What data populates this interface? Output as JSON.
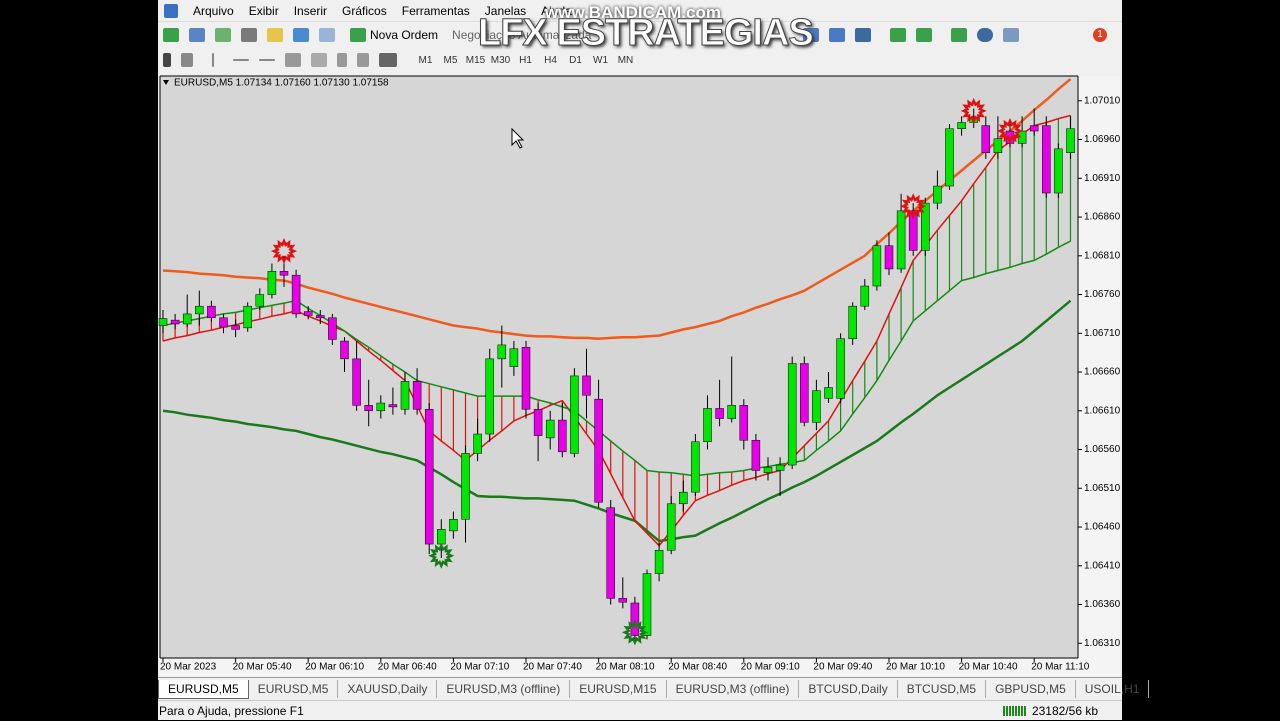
{
  "menu": [
    "Arquivo",
    "Exibir",
    "Inserir",
    "Gráficos",
    "Ferramentas",
    "Janelas",
    "Ajuda"
  ],
  "toolbar": {
    "new_order": "Nova Ordem",
    "auto_trading": "Negociação Automatizada",
    "notifications": 1
  },
  "timeframes": [
    "M1",
    "M5",
    "M15",
    "M30",
    "H1",
    "H4",
    "D1",
    "W1",
    "MN"
  ],
  "watermark": {
    "recorder": "www.BANDICAM.com",
    "brand": "LFX ESTRATEGIAS"
  },
  "chart_data": {
    "type": "candlestick",
    "title": "EURUSD,M5  1.07134 1.07160 1.07130 1.07158",
    "categories": [
      "20 Mar 2023",
      null,
      null,
      null,
      null,
      null,
      "20 Mar 05:40",
      null,
      null,
      null,
      null,
      null,
      "20 Mar 06:10",
      null,
      null,
      null,
      null,
      null,
      "20 Mar 06:40",
      null,
      null,
      null,
      null,
      null,
      "20 Mar 07:10",
      null,
      null,
      null,
      null,
      null,
      "20 Mar 07:40",
      null,
      null,
      null,
      null,
      null,
      "20 Mar 08:10",
      null,
      null,
      null,
      null,
      null,
      "20 Mar 08:40",
      null,
      null,
      null,
      null,
      null,
      "20 Mar 09:10",
      null,
      null,
      null,
      null,
      null,
      "20 Mar 09:40",
      null,
      null,
      null,
      null,
      null,
      "20 Mar 10:10",
      null,
      null,
      null,
      null,
      null,
      "20 Mar 10:40",
      null,
      null,
      null,
      null,
      null,
      "20 Mar 11:10",
      null,
      null,
      null
    ],
    "open": [
      1.0672,
      1.06727,
      1.06722,
      1.06735,
      1.06745,
      1.0673,
      1.0672,
      1.06717,
      1.06745,
      1.0676,
      1.0679,
      1.06785,
      1.06738,
      1.06733,
      1.0673,
      1.067,
      1.06677,
      1.06617,
      1.0661,
      1.06618,
      1.06612,
      1.06648,
      1.06612,
      1.06438,
      1.06455,
      1.0647,
      1.06555,
      1.0658,
      1.06677,
      1.06667,
      1.06692,
      1.06612,
      1.06575,
      1.06598,
      1.06555,
      1.06655,
      1.06625,
      1.06485,
      1.06368,
      1.06362,
      1.0632,
      1.064,
      1.0643,
      1.0649,
      1.06505,
      1.0657,
      1.06613,
      1.066,
      1.06617,
      1.06572,
      1.0653,
      1.06533,
      1.0654,
      1.06671,
      1.06595,
      1.06626,
      1.06626,
      1.06703,
      1.06745,
      1.06771,
      1.06823,
      1.06793,
      1.06868,
      1.06817,
      1.06878,
      1.069,
      1.06974,
      1.06982,
      1.06978,
      1.06943,
      1.06971,
      1.06955,
      1.06978,
      1.06978,
      1.06891,
      1.06943
    ],
    "high": [
      1.0674,
      1.06735,
      1.0676,
      1.06765,
      1.06752,
      1.06735,
      1.06728,
      1.0675,
      1.06768,
      1.068,
      1.0681,
      1.06792,
      1.06745,
      1.0674,
      1.06735,
      1.06705,
      1.067,
      1.0665,
      1.0663,
      1.0664,
      1.0666,
      1.06665,
      1.0662,
      1.0647,
      1.0648,
      1.06565,
      1.066,
      1.0669,
      1.0672,
      1.067,
      1.067,
      1.0662,
      1.0661,
      1.0662,
      1.06665,
      1.0669,
      1.0665,
      1.06495,
      1.06395,
      1.0637,
      1.06405,
      1.0644,
      1.065,
      1.0652,
      1.0658,
      1.0663,
      1.0665,
      1.0668,
      1.06625,
      1.0658,
      1.0655,
      1.0655,
      1.0668,
      1.0668,
      1.0665,
      1.0666,
      1.0671,
      1.0675,
      1.0678,
      1.0683,
      1.0684,
      1.0689,
      1.06878,
      1.06885,
      1.0692,
      1.0698,
      1.0699,
      1.07,
      1.0699,
      1.0699,
      1.06985,
      1.0699,
      1.07,
      1.0699,
      1.06955,
      1.0699
    ],
    "low": [
      1.0671,
      1.06715,
      1.06718,
      1.0672,
      1.06725,
      1.0671,
      1.06705,
      1.06712,
      1.0674,
      1.06755,
      1.0677,
      1.0673,
      1.06728,
      1.06722,
      1.06695,
      1.0666,
      1.0661,
      1.0659,
      1.066,
      1.06605,
      1.06605,
      1.06605,
      1.06425,
      1.0642,
      1.06445,
      1.0644,
      1.06545,
      1.0657,
      1.0664,
      1.06655,
      1.066,
      1.06545,
      1.0656,
      1.0655,
      1.0655,
      1.066,
      1.06485,
      1.0636,
      1.06355,
      1.0631,
      1.06315,
      1.0639,
      1.06425,
      1.0648,
      1.065,
      1.0656,
      1.0659,
      1.06595,
      1.0656,
      1.0652,
      1.0652,
      1.065,
      1.06535,
      1.0659,
      1.06585,
      1.0662,
      1.0662,
      1.06695,
      1.0674,
      1.06765,
      1.06785,
      1.06788,
      1.0681,
      1.0681,
      1.0687,
      1.06895,
      1.06965,
      1.06975,
      1.06935,
      1.06935,
      1.0695,
      1.0695,
      1.06965,
      1.06885,
      1.06885,
      1.06935
    ],
    "close": [
      1.06729,
      1.06722,
      1.06735,
      1.06745,
      1.0673,
      1.06718,
      1.06715,
      1.06745,
      1.0676,
      1.0679,
      1.06785,
      1.06735,
      1.06733,
      1.0673,
      1.06702,
      1.06677,
      1.06617,
      1.0661,
      1.0662,
      1.06615,
      1.06648,
      1.06612,
      1.06438,
      1.06457,
      1.0647,
      1.06555,
      1.0658,
      1.06677,
      1.06695,
      1.0669,
      1.06612,
      1.06578,
      1.06598,
      1.06557,
      1.06655,
      1.0663,
      1.06492,
      1.06368,
      1.06363,
      1.0632,
      1.064,
      1.0643,
      1.0649,
      1.06505,
      1.0657,
      1.06613,
      1.066,
      1.06617,
      1.06572,
      1.06533,
      1.06537,
      1.0654,
      1.06671,
      1.06595,
      1.06636,
      1.0664,
      1.06703,
      1.06745,
      1.06771,
      1.06823,
      1.06793,
      1.06868,
      1.06817,
      1.06878,
      1.069,
      1.06974,
      1.06982,
      1.06987,
      1.06943,
      1.06961,
      1.06955,
      1.06971,
      1.06971,
      1.06891,
      1.06948,
      1.06974
    ],
    "up_color": "#00e600",
    "down_color": "#e600e6",
    "series": [
      {
        "color": "#f05a1a",
        "values": [
          1.06791,
          1.0679,
          1.06789,
          1.06787,
          1.06786,
          1.06785,
          1.06783,
          1.06782,
          1.06781,
          1.06779,
          1.06778,
          1.06774,
          1.06769,
          1.06765,
          1.06761,
          1.06756,
          1.06752,
          1.06748,
          1.06744,
          1.0674,
          1.06736,
          1.06732,
          1.06728,
          1.06724,
          1.0672,
          1.06718,
          1.06716,
          1.06713,
          1.06711,
          1.06709,
          1.06707,
          1.06706,
          1.06706,
          1.06705,
          1.06704,
          1.06704,
          1.06703,
          1.06704,
          1.06705,
          1.06705,
          1.06706,
          1.06707,
          1.06711,
          1.06715,
          1.06718,
          1.06722,
          1.06726,
          1.06732,
          1.06737,
          1.06743,
          1.06748,
          1.06754,
          1.06759,
          1.06765,
          1.06774,
          1.06783,
          1.06792,
          1.06801,
          1.0681,
          1.06825,
          1.06839,
          1.06854,
          1.06868,
          1.06881,
          1.06894,
          1.06907,
          1.0692,
          1.06933,
          1.06946,
          1.06958,
          1.06971,
          1.06984,
          1.06998,
          1.07011,
          1.07025,
          1.07038
        ]
      },
      {
        "color": "#1a7a1a",
        "values": [
          1.0661,
          1.06608,
          1.06605,
          1.06603,
          1.06601,
          1.06598,
          1.06596,
          1.06593,
          1.06591,
          1.06589,
          1.06586,
          1.06584,
          1.0658,
          1.06576,
          1.06573,
          1.06569,
          1.06565,
          1.06561,
          1.06557,
          1.06554,
          1.0655,
          1.06546,
          1.06537,
          1.06528,
          1.06518,
          1.06509,
          1.065,
          1.06499,
          1.06499,
          1.06498,
          1.06497,
          1.06497,
          1.06496,
          1.06495,
          1.06494,
          1.06489,
          1.06484,
          1.06478,
          1.06473,
          1.06468,
          1.06455,
          1.06442,
          1.06444,
          1.06447,
          1.06449,
          1.06457,
          1.06465,
          1.06472,
          1.0648,
          1.06488,
          1.06496,
          1.06503,
          1.06511,
          1.06518,
          1.06526,
          1.06535,
          1.06544,
          1.06553,
          1.06562,
          1.06571,
          1.06583,
          1.06595,
          1.06606,
          1.06618,
          1.0663,
          1.0664,
          1.0665,
          1.0666,
          1.0667,
          1.0668,
          1.0669,
          1.067,
          1.06713,
          1.06726,
          1.06739,
          1.06752
        ]
      },
      {
        "color": "#e01010",
        "values": [
          1.067,
          1.06704,
          1.06707,
          1.06711,
          1.06714,
          1.06718,
          1.06721,
          1.06725,
          1.06728,
          1.06732,
          1.06735,
          1.06739,
          1.06732,
          1.06726,
          1.06719,
          1.06713,
          1.067,
          1.06687,
          1.06675,
          1.06662,
          1.06649,
          1.06617,
          1.06584,
          1.06571,
          1.06559,
          1.06546,
          1.06559,
          1.06572,
          1.06584,
          1.06597,
          1.06604,
          1.0661,
          1.06617,
          1.06623,
          1.06602,
          1.0658,
          1.06559,
          1.06529,
          1.06498,
          1.06468,
          1.06452,
          1.06436,
          1.06455,
          1.06475,
          1.06494,
          1.06501,
          1.06507,
          1.06514,
          1.0652,
          1.06524,
          1.06529,
          1.06533,
          1.06549,
          1.06565,
          1.06581,
          1.06597,
          1.06623,
          1.06649,
          1.06674,
          1.067,
          1.06735,
          1.06769,
          1.06804,
          1.06823,
          1.06843,
          1.06862,
          1.06881,
          1.06903,
          1.06924,
          1.06946,
          1.06957,
          1.06967,
          1.06978,
          1.06982,
          1.06987,
          1.06991
        ]
      },
      {
        "color": "#128c12",
        "values": [
          1.0672,
          1.06723,
          1.06726,
          1.06729,
          1.06732,
          1.06735,
          1.06737,
          1.0674,
          1.06743,
          1.06746,
          1.06749,
          1.06752,
          1.06742,
          1.06733,
          1.06723,
          1.06713,
          1.06702,
          1.06692,
          1.06681,
          1.0667,
          1.0666,
          1.06649,
          1.06645,
          1.06641,
          1.06637,
          1.06633,
          1.06629,
          1.06629,
          1.06629,
          1.06629,
          1.06629,
          1.06624,
          1.0662,
          1.06615,
          1.0661,
          1.06597,
          1.06584,
          1.06571,
          1.06558,
          1.06546,
          1.06533,
          1.06531,
          1.0653,
          1.06528,
          1.06526,
          1.06528,
          1.0653,
          1.06531,
          1.06533,
          1.06536,
          1.06538,
          1.06541,
          1.06543,
          1.06546,
          1.06559,
          1.06571,
          1.06584,
          1.06606,
          1.06627,
          1.06649,
          1.06675,
          1.067,
          1.06726,
          1.06739,
          1.06752,
          1.06765,
          1.06778,
          1.06782,
          1.06787,
          1.06791,
          1.06795,
          1.068,
          1.06804,
          1.06812,
          1.06821,
          1.06829
        ]
      }
    ],
    "sell_signals": {
      "color": "#e01010",
      "values": [
        null,
        null,
        null,
        null,
        null,
        null,
        null,
        null,
        null,
        null,
        1.06816,
        null,
        null,
        null,
        null,
        null,
        null,
        null,
        null,
        null,
        null,
        null,
        null,
        null,
        null,
        null,
        null,
        null,
        null,
        null,
        null,
        null,
        null,
        null,
        null,
        null,
        null,
        null,
        null,
        null,
        null,
        null,
        null,
        null,
        null,
        null,
        null,
        null,
        null,
        null,
        null,
        null,
        null,
        null,
        null,
        null,
        null,
        null,
        null,
        null,
        null,
        null,
        1.06874,
        null,
        null,
        null,
        null,
        1.06997,
        null,
        null,
        1.06971,
        null,
        null,
        null,
        null,
        null
      ]
    },
    "buy_signals": {
      "color": "#1a7a1a",
      "values": [
        null,
        null,
        null,
        null,
        null,
        null,
        null,
        null,
        null,
        null,
        null,
        null,
        null,
        null,
        null,
        null,
        null,
        null,
        null,
        null,
        null,
        null,
        null,
        1.06423,
        null,
        null,
        null,
        null,
        null,
        null,
        null,
        null,
        null,
        null,
        null,
        null,
        null,
        null,
        null,
        1.06324,
        null,
        null,
        null,
        null,
        null,
        null,
        null,
        null,
        null,
        null,
        null,
        null,
        null,
        null,
        null,
        null,
        null,
        null,
        null,
        null,
        null,
        null,
        null,
        null,
        null,
        null,
        null,
        null,
        null,
        null,
        null,
        null,
        null,
        null,
        null,
        null
      ]
    },
    "ylim": [
      1.06291,
      1.07042
    ],
    "yticks": [
      {
        "value": 1.0701,
        "label": "1.07010"
      },
      {
        "value": 1.0696,
        "label": "1.06960"
      },
      {
        "value": 1.0691,
        "label": "1.06910"
      },
      {
        "value": 1.0686,
        "label": "1.06860"
      },
      {
        "value": 1.0681,
        "label": "1.06810"
      },
      {
        "value": 1.0676,
        "label": "1.06760"
      },
      {
        "value": 1.0671,
        "label": "1.06710"
      },
      {
        "value": 1.0666,
        "label": "1.06660"
      },
      {
        "value": 1.0661,
        "label": "1.06610"
      },
      {
        "value": 1.0656,
        "label": "1.06560"
      },
      {
        "value": 1.0651,
        "label": "1.06510"
      },
      {
        "value": 1.0646,
        "label": "1.06460"
      },
      {
        "value": 1.0641,
        "label": "1.06410"
      },
      {
        "value": 1.0636,
        "label": "1.06360"
      },
      {
        "value": 1.0631,
        "label": "1.06310"
      }
    ]
  },
  "tabs": [
    "EURUSD,M5",
    "EURUSD,M5",
    "XAUUSD,Daily",
    "EURUSD,M3 (offline)",
    "EURUSD,M15",
    "EURUSD,M3 (offline)",
    "BTCUSD,Daily",
    "BTCUSD,M5",
    "GBPUSD,M5",
    "USOIL,H1"
  ],
  "status": {
    "help": "Para o Ajuda, pressione F1",
    "traffic": "23182/56 kb"
  }
}
